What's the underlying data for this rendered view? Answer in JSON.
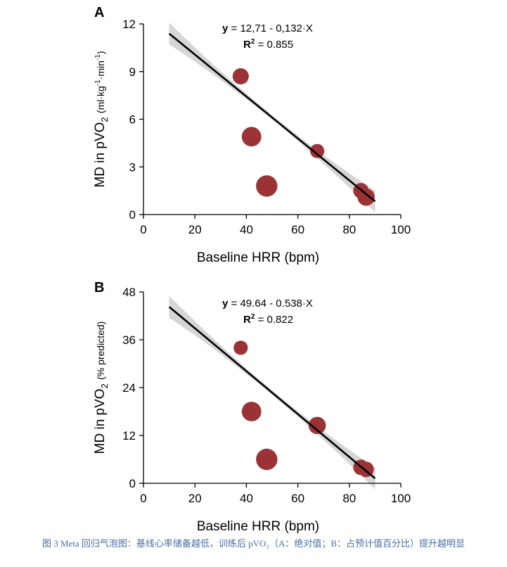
{
  "caption": "图 3 Meta 回归气泡图：基线心率储备越低，训练后 pVO₂（A：绝对值；B：占预计值百分比）提升越明显",
  "colors": {
    "bubble": "#9b3336",
    "line": "#000000",
    "band": "#cfcfcf"
  },
  "chart_data": [
    {
      "panel": "A",
      "type": "scatter",
      "title": "",
      "equation": "= 12,71 - 0,132·X",
      "equation_var": "y",
      "r2_label": "R",
      "r2_exp": "2",
      "r2_value": "= 0.855",
      "xlabel": "Baseline HRR (bpm)",
      "ylabel": "MD in pVO",
      "ylabel_sub": "2",
      "ylabel_units": "(ml·kg",
      "ylabel_units_sup1": "-1",
      "ylabel_units_mid": "·min",
      "ylabel_units_sup2": "-1",
      "ylabel_units_end": ")",
      "xlim": [
        0,
        100
      ],
      "ylim": [
        0,
        12
      ],
      "xticks": [
        "0",
        "20",
        "40",
        "60",
        "80",
        "100"
      ],
      "yticks": [
        "0",
        "3",
        "6",
        "9",
        "12"
      ],
      "x": [
        37.8,
        42.0,
        47.9,
        67.5,
        84.5,
        86.5
      ],
      "y": [
        8.7,
        4.9,
        1.8,
        4.0,
        1.5,
        1.1
      ],
      "weights": [
        1.1,
        1.6,
        1.9,
        0.85,
        1.0,
        1.25
      ],
      "fit": {
        "intercept": 12.71,
        "slope": -0.132,
        "x_range": [
          10,
          90
        ]
      }
    },
    {
      "panel": "B",
      "type": "scatter",
      "title": "",
      "equation": "= 49.64 - 0.538·X",
      "equation_var": "y",
      "r2_label": "R",
      "r2_exp": "2",
      "r2_value": "= 0.822",
      "xlabel": "Baseline HRR (bpm)",
      "ylabel": "MD in pVO",
      "ylabel_sub": "2",
      "ylabel_units": "(% predicted)",
      "xlim": [
        0,
        100
      ],
      "ylim": [
        0,
        48
      ],
      "xticks": [
        "0",
        "20",
        "40",
        "60",
        "80",
        "100"
      ],
      "yticks": [
        "0",
        "12",
        "24",
        "36",
        "48"
      ],
      "x": [
        37.8,
        42.0,
        47.9,
        67.5,
        84.5,
        86.5
      ],
      "y": [
        34.0,
        18.0,
        6.0,
        14.5,
        4.0,
        3.5
      ],
      "weights": [
        0.85,
        1.6,
        1.9,
        1.25,
        1.0,
        1.0
      ],
      "fit": {
        "intercept": 49.64,
        "slope": -0.538,
        "x_range": [
          10,
          90
        ]
      }
    }
  ]
}
